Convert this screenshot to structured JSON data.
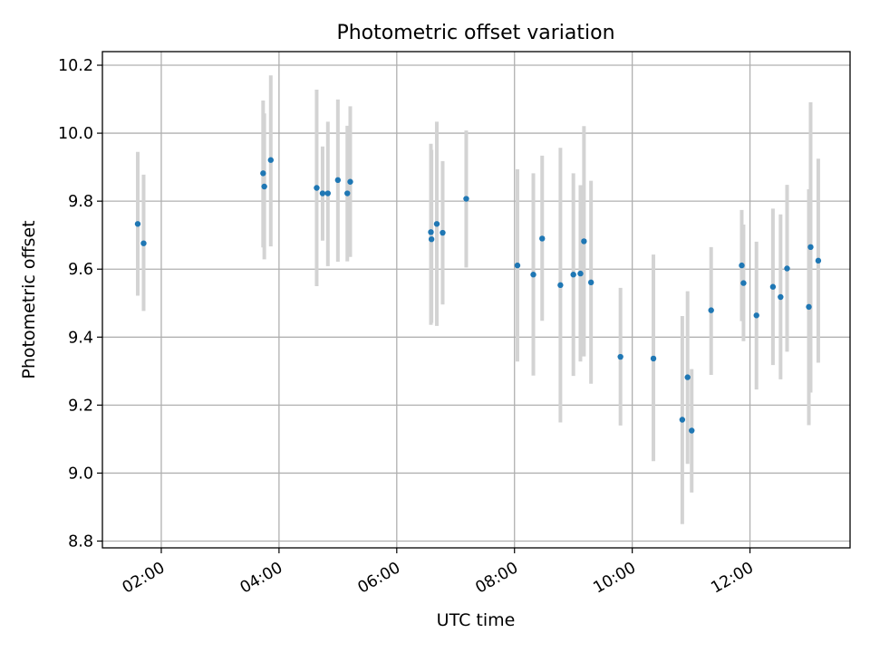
{
  "chart_data": {
    "type": "scatter",
    "title": "Photometric offset variation",
    "xlabel": "UTC time",
    "ylabel": "Photometric offset",
    "x_unit": "UTC time (hours)",
    "xlim": [
      1.0,
      13.7
    ],
    "ylim": [
      8.78,
      10.24
    ],
    "x_ticks": [
      {
        "value": 2,
        "label": "02:00"
      },
      {
        "value": 4,
        "label": "04:00"
      },
      {
        "value": 6,
        "label": "06:00"
      },
      {
        "value": 8,
        "label": "08:00"
      },
      {
        "value": 10,
        "label": "10:00"
      },
      {
        "value": 12,
        "label": "12:00"
      }
    ],
    "y_ticks": [
      {
        "value": 8.8,
        "label": "8.8"
      },
      {
        "value": 9.0,
        "label": "9.0"
      },
      {
        "value": 9.2,
        "label": "9.2"
      },
      {
        "value": 9.4,
        "label": "9.4"
      },
      {
        "value": 9.6,
        "label": "9.6"
      },
      {
        "value": 9.8,
        "label": "9.8"
      },
      {
        "value": 10.0,
        "label": "10.0"
      },
      {
        "value": 10.2,
        "label": "10.2"
      }
    ],
    "grid": true,
    "marker_color": "#1f77b4",
    "errorbar_color": "#d3d3d3",
    "points": [
      {
        "x": 1.6,
        "y": 9.733,
        "ylo": 9.522,
        "yhi": 9.945
      },
      {
        "x": 1.7,
        "y": 9.676,
        "ylo": 9.477,
        "yhi": 9.878
      },
      {
        "x": 3.73,
        "y": 9.882,
        "ylo": 9.664,
        "yhi": 10.096
      },
      {
        "x": 3.75,
        "y": 9.843,
        "ylo": 9.629,
        "yhi": 10.058
      },
      {
        "x": 3.86,
        "y": 9.921,
        "ylo": 9.667,
        "yhi": 10.17
      },
      {
        "x": 4.64,
        "y": 9.839,
        "ylo": 9.55,
        "yhi": 10.128
      },
      {
        "x": 4.74,
        "y": 9.823,
        "ylo": 9.684,
        "yhi": 9.961
      },
      {
        "x": 4.83,
        "y": 9.823,
        "ylo": 9.609,
        "yhi": 10.034
      },
      {
        "x": 5.0,
        "y": 9.862,
        "ylo": 9.622,
        "yhi": 10.099
      },
      {
        "x": 5.16,
        "y": 9.823,
        "ylo": 9.623,
        "yhi": 10.022
      },
      {
        "x": 5.21,
        "y": 9.857,
        "ylo": 9.636,
        "yhi": 10.079
      },
      {
        "x": 6.58,
        "y": 9.709,
        "ylo": 9.436,
        "yhi": 9.969
      },
      {
        "x": 6.59,
        "y": 9.688,
        "ylo": 9.442,
        "yhi": 9.951
      },
      {
        "x": 6.68,
        "y": 9.733,
        "ylo": 9.433,
        "yhi": 10.034
      },
      {
        "x": 6.78,
        "y": 9.707,
        "ylo": 9.496,
        "yhi": 9.918
      },
      {
        "x": 7.18,
        "y": 9.807,
        "ylo": 9.605,
        "yhi": 10.008
      },
      {
        "x": 8.05,
        "y": 9.611,
        "ylo": 9.328,
        "yhi": 9.894
      },
      {
        "x": 8.32,
        "y": 9.584,
        "ylo": 9.287,
        "yhi": 9.882
      },
      {
        "x": 8.47,
        "y": 9.69,
        "ylo": 9.448,
        "yhi": 9.934
      },
      {
        "x": 8.78,
        "y": 9.553,
        "ylo": 9.149,
        "yhi": 9.957
      },
      {
        "x": 9.0,
        "y": 9.584,
        "ylo": 9.286,
        "yhi": 9.882
      },
      {
        "x": 9.12,
        "y": 9.587,
        "ylo": 9.328,
        "yhi": 9.847
      },
      {
        "x": 9.18,
        "y": 9.682,
        "ylo": 9.343,
        "yhi": 10.021
      },
      {
        "x": 9.3,
        "y": 9.561,
        "ylo": 9.263,
        "yhi": 9.86
      },
      {
        "x": 9.8,
        "y": 9.342,
        "ylo": 9.14,
        "yhi": 9.545
      },
      {
        "x": 10.36,
        "y": 9.337,
        "ylo": 9.035,
        "yhi": 9.643
      },
      {
        "x": 10.85,
        "y": 9.157,
        "ylo": 8.85,
        "yhi": 9.462
      },
      {
        "x": 10.94,
        "y": 9.282,
        "ylo": 9.027,
        "yhi": 9.535
      },
      {
        "x": 11.01,
        "y": 9.125,
        "ylo": 8.943,
        "yhi": 9.306
      },
      {
        "x": 11.34,
        "y": 9.479,
        "ylo": 9.289,
        "yhi": 9.665
      },
      {
        "x": 11.86,
        "y": 9.611,
        "ylo": 9.447,
        "yhi": 9.774
      },
      {
        "x": 11.89,
        "y": 9.559,
        "ylo": 9.388,
        "yhi": 9.731
      },
      {
        "x": 12.11,
        "y": 9.464,
        "ylo": 9.246,
        "yhi": 9.681
      },
      {
        "x": 12.39,
        "y": 9.548,
        "ylo": 9.318,
        "yhi": 9.778
      },
      {
        "x": 12.52,
        "y": 9.518,
        "ylo": 9.276,
        "yhi": 9.761
      },
      {
        "x": 12.63,
        "y": 9.602,
        "ylo": 9.357,
        "yhi": 9.848
      },
      {
        "x": 13.0,
        "y": 9.489,
        "ylo": 9.141,
        "yhi": 9.835
      },
      {
        "x": 13.03,
        "y": 9.665,
        "ylo": 9.237,
        "yhi": 10.091
      },
      {
        "x": 13.16,
        "y": 9.625,
        "ylo": 9.325,
        "yhi": 9.925
      }
    ]
  }
}
